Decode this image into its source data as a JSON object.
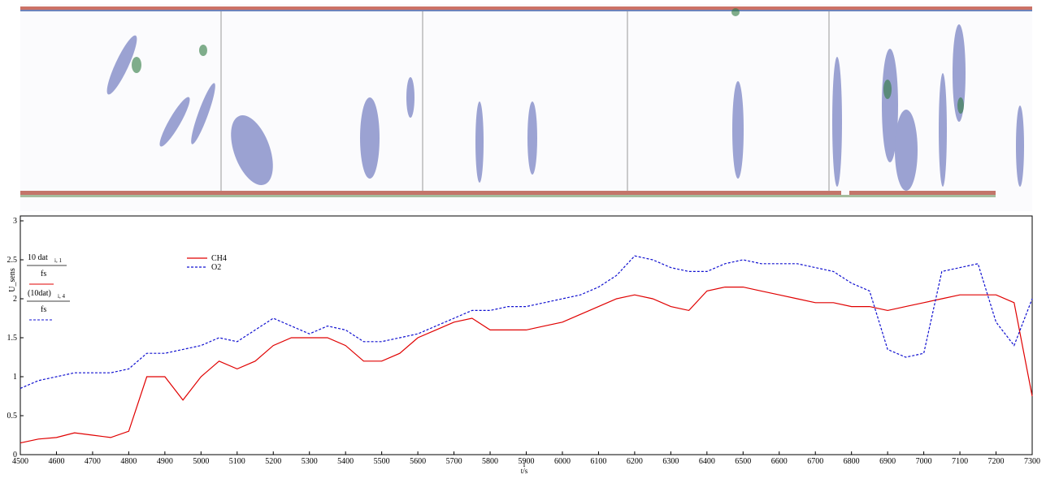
{
  "chart_data": {
    "type": "line",
    "y_axis_label": "U_sens",
    "y_expressions": [
      {
        "numerator": "10 dat",
        "subscript": "i, 1",
        "denominator": "fs"
      },
      {
        "numerator": "(10dat)",
        "subscript": "i, 4",
        "denominator": "fs"
      }
    ],
    "x_axis_index": "i",
    "xlabel": "t/s",
    "x": [
      4500,
      4550,
      4600,
      4650,
      4700,
      4750,
      4800,
      4850,
      4900,
      4950,
      5000,
      5050,
      5100,
      5150,
      5200,
      5250,
      5300,
      5350,
      5400,
      5450,
      5500,
      5550,
      5600,
      5650,
      5700,
      5750,
      5800,
      5850,
      5900,
      5950,
      6000,
      6050,
      6100,
      6150,
      6200,
      6250,
      6300,
      6350,
      6400,
      6450,
      6500,
      6550,
      6600,
      6650,
      6700,
      6750,
      6800,
      6850,
      6900,
      6950,
      7000,
      7050,
      7100,
      7150,
      7200,
      7250,
      7300
    ],
    "series": [
      {
        "name": "CH4",
        "color": "#e00000",
        "line_style": "solid",
        "values": [
          0.15,
          0.2,
          0.22,
          0.28,
          0.25,
          0.22,
          0.3,
          1.0,
          1.0,
          0.7,
          1.0,
          1.2,
          1.1,
          1.2,
          1.4,
          1.5,
          1.5,
          1.5,
          1.4,
          1.2,
          1.2,
          1.3,
          1.5,
          1.6,
          1.7,
          1.75,
          1.6,
          1.6,
          1.6,
          1.65,
          1.7,
          1.8,
          1.9,
          2.0,
          2.05,
          2.0,
          1.9,
          1.85,
          2.1,
          2.15,
          2.15,
          2.1,
          2.05,
          2.0,
          1.95,
          1.95,
          1.9,
          1.9,
          1.85,
          1.9,
          1.95,
          2.0,
          2.05,
          2.05,
          2.05,
          1.95,
          0.75
        ]
      },
      {
        "name": "O2",
        "color": "#1010d0",
        "line_style": "dashed",
        "values": [
          0.85,
          0.95,
          1.0,
          1.05,
          1.05,
          1.05,
          1.1,
          1.3,
          1.3,
          1.35,
          1.4,
          1.5,
          1.45,
          1.6,
          1.75,
          1.65,
          1.55,
          1.65,
          1.6,
          1.45,
          1.45,
          1.5,
          1.55,
          1.65,
          1.75,
          1.85,
          1.85,
          1.9,
          1.9,
          1.95,
          2.0,
          2.05,
          2.15,
          2.3,
          2.55,
          2.5,
          2.4,
          2.35,
          2.35,
          2.45,
          2.5,
          2.45,
          2.45,
          2.45,
          2.4,
          2.35,
          2.2,
          2.1,
          1.35,
          1.25,
          1.3,
          2.35,
          2.4,
          2.45,
          1.7,
          1.4,
          2.0
        ]
      }
    ],
    "xlim": [
      4500,
      7300
    ],
    "xticks": [
      4500,
      4600,
      4700,
      4800,
      4900,
      5000,
      5100,
      5200,
      5300,
      5400,
      5500,
      5600,
      5700,
      5800,
      5900,
      6000,
      6100,
      6200,
      6300,
      6400,
      6500,
      6600,
      6700,
      6800,
      6900,
      7000,
      7100,
      7200,
      7300
    ],
    "ylim": [
      0,
      3
    ],
    "yticks": [
      0,
      0.5,
      1,
      1.5,
      2,
      2.5,
      3
    ],
    "grid": false,
    "legend": "top-left"
  }
}
